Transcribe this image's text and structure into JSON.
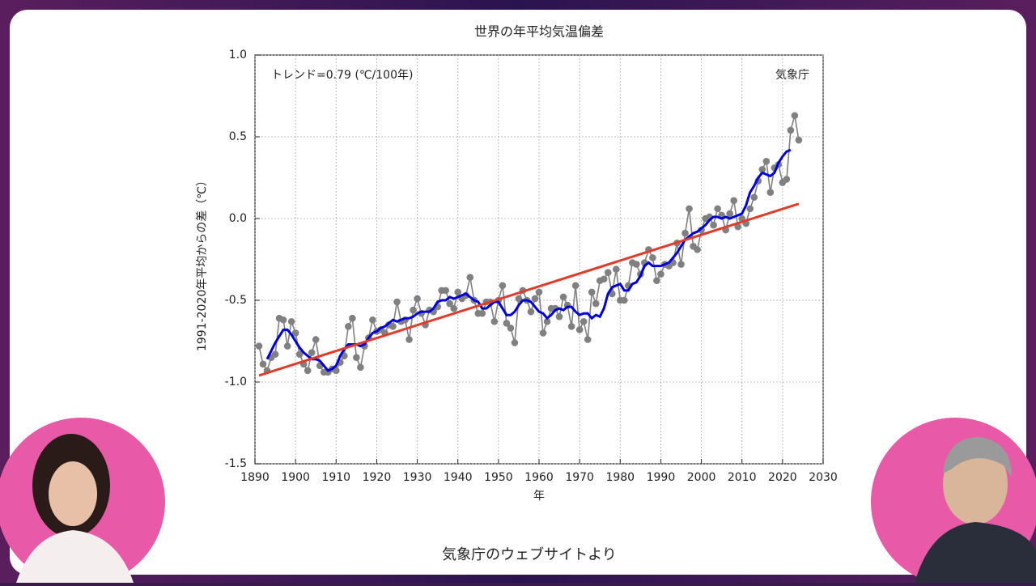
{
  "chart_data": {
    "type": "line",
    "title": "世界の年平均気温偏差",
    "trend_note": "トレンド=0.79 (℃/100年)",
    "source": "気象庁",
    "x_label": "年",
    "y_label": "1991-2020年平均からの差（℃）",
    "xlim": [
      1890,
      2030
    ],
    "ylim": [
      -1.5,
      1.0
    ],
    "xticks": [
      1890,
      1900,
      1910,
      1920,
      1930,
      1940,
      1950,
      1960,
      1970,
      1980,
      1990,
      2000,
      2010,
      2020,
      2030
    ],
    "yticks": [
      {
        "value": 1.0,
        "label": "1.0"
      },
      {
        "value": 0.5,
        "label": "0.5"
      },
      {
        "value": 0,
        "label": "0.0"
      },
      {
        "value": -0.5,
        "label": "-0.5"
      },
      {
        "value": -1.0,
        "label": "-1.0"
      },
      {
        "value": -1.5,
        "label": "-1.5"
      }
    ],
    "grid": true,
    "series": [
      {
        "color": "#808080",
        "markers": true,
        "x": [
          1891,
          1892,
          1893,
          1894,
          1895,
          1896,
          1897,
          1898,
          1899,
          1900,
          1901,
          1902,
          1903,
          1904,
          1905,
          1906,
          1907,
          1908,
          1909,
          1910,
          1911,
          1912,
          1913,
          1914,
          1915,
          1916,
          1917,
          1918,
          1919,
          1920,
          1921,
          1922,
          1923,
          1924,
          1925,
          1926,
          1927,
          1928,
          1929,
          1930,
          1931,
          1932,
          1933,
          1934,
          1935,
          1936,
          1937,
          1938,
          1939,
          1940,
          1941,
          1942,
          1943,
          1944,
          1945,
          1946,
          1947,
          1948,
          1949,
          1950,
          1951,
          1952,
          1953,
          1954,
          1955,
          1956,
          1957,
          1958,
          1959,
          1960,
          1961,
          1962,
          1963,
          1964,
          1965,
          1966,
          1967,
          1968,
          1969,
          1970,
          1971,
          1972,
          1973,
          1974,
          1975,
          1976,
          1977,
          1978,
          1979,
          1980,
          1981,
          1982,
          1983,
          1984,
          1985,
          1986,
          1987,
          1988,
          1989,
          1990,
          1991,
          1992,
          1993,
          1994,
          1995,
          1996,
          1997,
          1998,
          1999,
          2000,
          2001,
          2002,
          2003,
          2004,
          2005,
          2006,
          2007,
          2008,
          2009,
          2010,
          2011,
          2012,
          2013,
          2014,
          2015,
          2016,
          2017,
          2018,
          2019,
          2020,
          2021,
          2022,
          2023,
          2024
        ],
        "values": [
          -0.78,
          -0.89,
          -0.93,
          -0.85,
          -0.83,
          -0.61,
          -0.62,
          -0.78,
          -0.63,
          -0.7,
          -0.83,
          -0.89,
          -0.93,
          -0.82,
          -0.74,
          -0.9,
          -0.94,
          -0.94,
          -0.92,
          -0.93,
          -0.88,
          -0.84,
          -0.66,
          -0.61,
          -0.85,
          -0.91,
          -0.78,
          -0.73,
          -0.62,
          -0.69,
          -0.68,
          -0.7,
          -0.65,
          -0.66,
          -0.51,
          -0.63,
          -0.62,
          -0.74,
          -0.56,
          -0.49,
          -0.58,
          -0.65,
          -0.56,
          -0.57,
          -0.54,
          -0.44,
          -0.44,
          -0.52,
          -0.55,
          -0.45,
          -0.49,
          -0.47,
          -0.36,
          -0.5,
          -0.58,
          -0.58,
          -0.51,
          -0.51,
          -0.63,
          -0.5,
          -0.41,
          -0.64,
          -0.67,
          -0.76,
          -0.49,
          -0.44,
          -0.5,
          -0.57,
          -0.49,
          -0.45,
          -0.7,
          -0.63,
          -0.55,
          -0.55,
          -0.6,
          -0.48,
          -0.53,
          -0.66,
          -0.41,
          -0.68,
          -0.63,
          -0.74,
          -0.45,
          -0.52,
          -0.38,
          -0.37,
          -0.33,
          -0.46,
          -0.31,
          -0.5,
          -0.5,
          -0.41,
          -0.27,
          -0.28,
          -0.34,
          -0.27,
          -0.19,
          -0.24,
          -0.38,
          -0.34,
          -0.28,
          -0.29,
          -0.27,
          -0.15,
          -0.28,
          -0.09,
          0.06,
          -0.17,
          -0.19,
          -0.07,
          0.0,
          0.01,
          -0.04,
          0.06,
          0.02,
          -0.07,
          0.03,
          0.11,
          -0.05,
          0.0,
          -0.03,
          0.06,
          0.13,
          0.23,
          0.3,
          0.35,
          0.16,
          0.31,
          0.33,
          0.22,
          0.24,
          0.54,
          0.63,
          0.48
        ]
      },
      {
        "color": "#0000dd",
        "x": [
          1893,
          1894,
          1895,
          1896,
          1897,
          1898,
          1899,
          1900,
          1901,
          1902,
          1903,
          1904,
          1905,
          1906,
          1907,
          1908,
          1909,
          1910,
          1911,
          1912,
          1913,
          1914,
          1915,
          1916,
          1917,
          1918,
          1919,
          1920,
          1921,
          1922,
          1923,
          1924,
          1925,
          1926,
          1927,
          1928,
          1929,
          1930,
          1931,
          1932,
          1933,
          1934,
          1935,
          1936,
          1937,
          1938,
          1939,
          1940,
          1941,
          1942,
          1943,
          1944,
          1945,
          1946,
          1947,
          1948,
          1949,
          1950,
          1951,
          1952,
          1953,
          1954,
          1955,
          1956,
          1957,
          1958,
          1959,
          1960,
          1961,
          1962,
          1963,
          1964,
          1965,
          1966,
          1967,
          1968,
          1969,
          1970,
          1971,
          1972,
          1973,
          1974,
          1975,
          1976,
          1977,
          1978,
          1979,
          1980,
          1981,
          1982,
          1983,
          1984,
          1985,
          1986,
          1987,
          1988,
          1989,
          1990,
          1991,
          1992,
          1993,
          1994,
          1995,
          1996,
          1997,
          1998,
          1999,
          2000,
          2001,
          2002,
          2003,
          2004,
          2005,
          2006,
          2007,
          2008,
          2009,
          2010,
          2011,
          2012,
          2013,
          2014,
          2015,
          2016,
          2017,
          2018,
          2019,
          2020,
          2021,
          2022
        ],
        "values": [
          -0.86,
          -0.81,
          -0.76,
          -0.72,
          -0.68,
          -0.68,
          -0.71,
          -0.75,
          -0.79,
          -0.82,
          -0.84,
          -0.86,
          -0.86,
          -0.87,
          -0.9,
          -0.93,
          -0.92,
          -0.9,
          -0.84,
          -0.8,
          -0.77,
          -0.77,
          -0.77,
          -0.78,
          -0.77,
          -0.73,
          -0.7,
          -0.69,
          -0.67,
          -0.66,
          -0.64,
          -0.62,
          -0.63,
          -0.62,
          -0.61,
          -0.61,
          -0.6,
          -0.58,
          -0.57,
          -0.57,
          -0.57,
          -0.55,
          -0.51,
          -0.5,
          -0.5,
          -0.48,
          -0.49,
          -0.48,
          -0.47,
          -0.46,
          -0.48,
          -0.5,
          -0.51,
          -0.55,
          -0.55,
          -0.53,
          -0.51,
          -0.51,
          -0.55,
          -0.59,
          -0.59,
          -0.57,
          -0.53,
          -0.5,
          -0.5,
          -0.51,
          -0.54,
          -0.57,
          -0.58,
          -0.61,
          -0.59,
          -0.56,
          -0.55,
          -0.56,
          -0.54,
          -0.54,
          -0.57,
          -0.59,
          -0.58,
          -0.58,
          -0.61,
          -0.59,
          -0.6,
          -0.55,
          -0.46,
          -0.42,
          -0.41,
          -0.4,
          -0.44,
          -0.44,
          -0.4,
          -0.39,
          -0.35,
          -0.29,
          -0.27,
          -0.29,
          -0.29,
          -0.29,
          -0.28,
          -0.27,
          -0.24,
          -0.21,
          -0.17,
          -0.13,
          -0.11,
          -0.09,
          -0.08,
          -0.06,
          -0.04,
          -0.01,
          0.01,
          0.01,
          0.0,
          0.01,
          0.0,
          0.01,
          0.02,
          0.03,
          0.08,
          0.16,
          0.2,
          0.25,
          0.28,
          0.27,
          0.26,
          0.28,
          0.34,
          0.38,
          0.41,
          0.42
        ]
      },
      {
        "color": "#e03c2a",
        "x": [
          1891,
          2024
        ],
        "values": [
          -0.96,
          0.09
        ]
      }
    ]
  },
  "caption": "気象庁のウェブサイトより"
}
